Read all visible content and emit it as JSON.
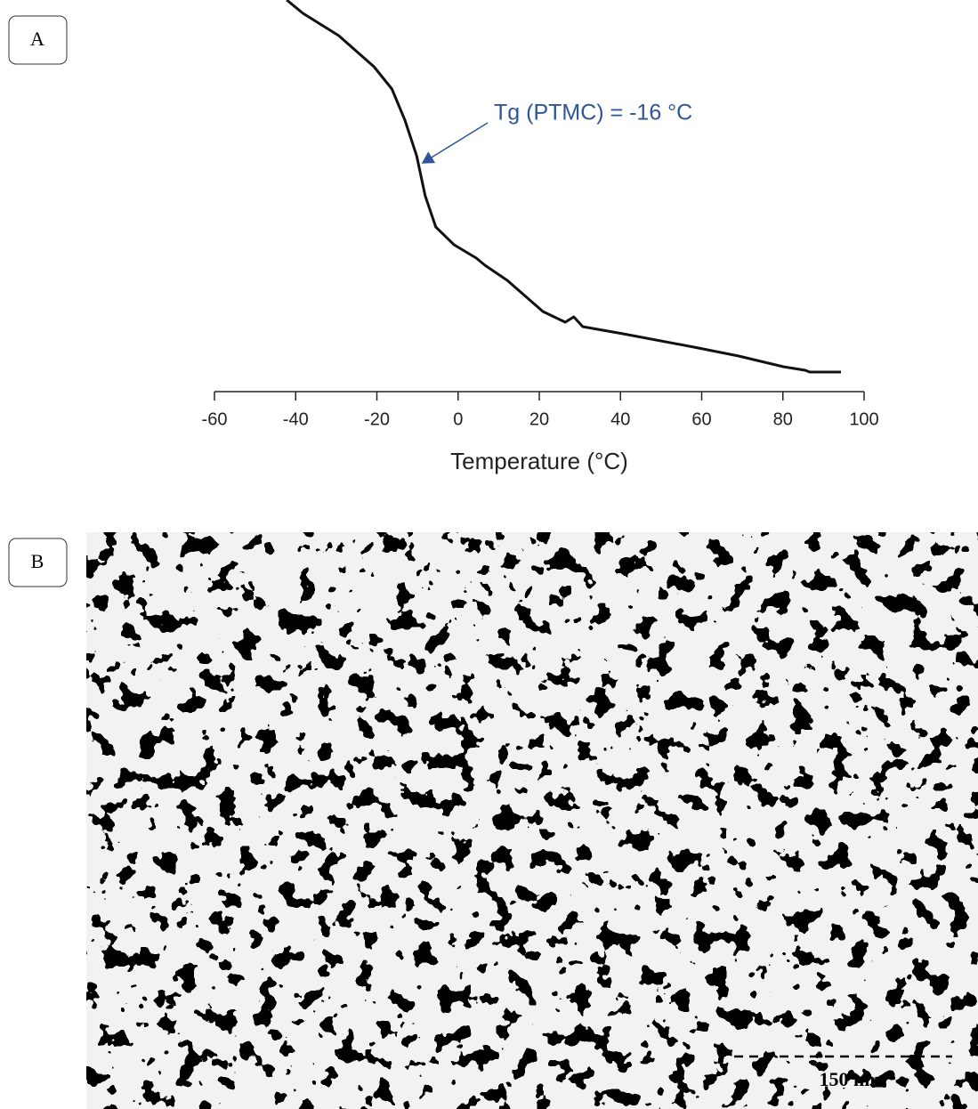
{
  "panels": [
    {
      "label": "A"
    },
    {
      "label": "B"
    }
  ],
  "chart_data": {
    "type": "line",
    "xlabel": "Temperature (°C)",
    "annotation": "Tg (PTMC) = -16 °C",
    "x": [
      -42.2,
      -38.2,
      -29.4,
      -20.7,
      -16.3,
      -13.1,
      -10.2,
      -8.1,
      -5.5,
      -1.0,
      4.5,
      6.6,
      12.1,
      20.9,
      26.4,
      28.5,
      30.7,
      40.6,
      58.1,
      69.1,
      80.1,
      85.5,
      86.6,
      94.3
    ],
    "values": [
      44,
      42.5,
      40,
      36.5,
      34,
      30.5,
      26.5,
      22,
      18.5,
      16.5,
      15,
      14.2,
      12.5,
      9,
      7.8,
      8.4,
      7.3,
      6.5,
      5,
      4,
      2.8,
      2.4,
      2.2,
      2.2
    ],
    "color": "#111111",
    "xlim": [
      -60,
      100
    ],
    "xticks": [
      -60,
      -40,
      -20,
      0,
      20,
      40,
      60,
      80,
      100
    ],
    "ylim": [
      0,
      44
    ]
  },
  "image": {
    "scale_bar": "150 nm"
  }
}
